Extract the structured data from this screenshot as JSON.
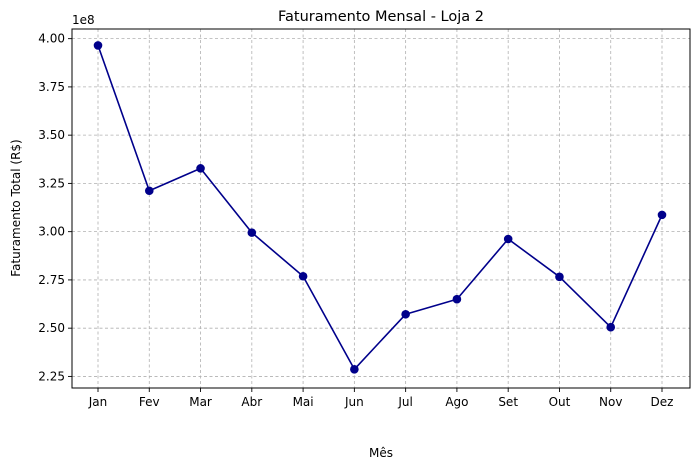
{
  "chart_data": {
    "type": "line",
    "title": "Faturamento Mensal - Loja 2",
    "xlabel": "Mês",
    "ylabel": "Faturamento Total (R$)",
    "y_offset_label": "1e8",
    "categories": [
      "Jan",
      "Fev",
      "Mar",
      "Abr",
      "Mai",
      "Jun",
      "Jul",
      "Ago",
      "Set",
      "Out",
      "Nov",
      "Dez"
    ],
    "series": [
      {
        "values": [
          3.965,
          3.212,
          3.328,
          2.995,
          2.769,
          2.287,
          2.572,
          2.65,
          2.962,
          2.766,
          2.505,
          3.087
        ]
      }
    ],
    "ylim": [
      2.19,
      4.05
    ],
    "yticks": [
      2.25,
      2.5,
      2.75,
      3.0,
      3.25,
      3.5,
      3.75,
      4.0
    ],
    "ytick_labels": [
      "2.25",
      "2.50",
      "2.75",
      "3.00",
      "3.25",
      "3.50",
      "3.75",
      "4.00"
    ],
    "grid": true,
    "line_color": "#00008b",
    "marker": "circle"
  }
}
